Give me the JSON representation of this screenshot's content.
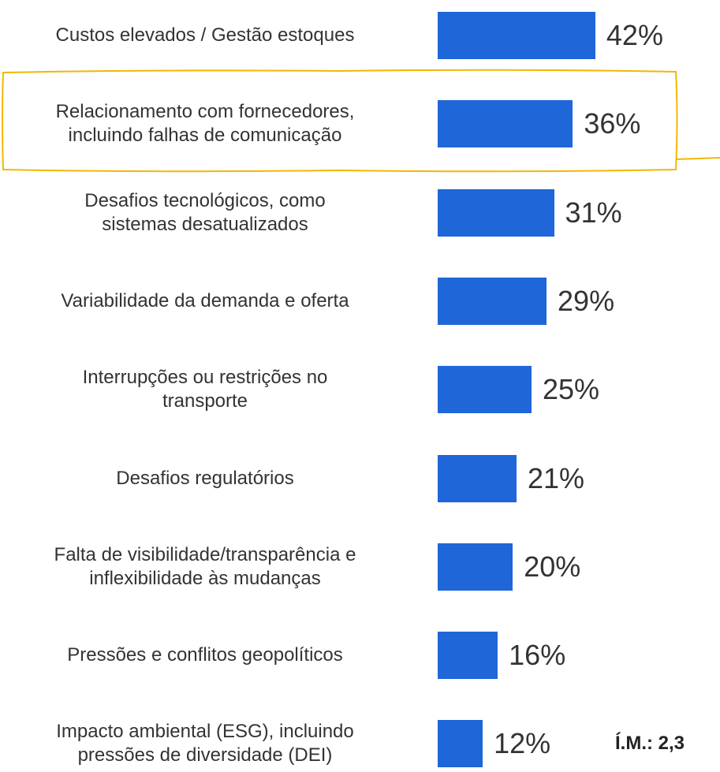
{
  "chart_data": {
    "type": "bar",
    "orientation": "horizontal",
    "color": "#1f66d8",
    "categories": [
      "Custos elevados / Gestão estoques",
      "Relacionamento com fornecedores,\nincluindo falhas de comunicação",
      "Desafios tecnológicos, como\nsistemas desatualizados",
      "Variabilidade da demanda e oferta",
      "Interrupções ou restrições no\ntransporte",
      "Desafios regulatórios",
      "Falta de visibilidade/transparência e\ninflexibilidade às mudanças",
      "Pressões e conflitos geopolíticos",
      "Impacto ambiental (ESG), incluindo\npressões de diversidade (DEI)"
    ],
    "values": [
      42,
      36,
      31,
      29,
      25,
      21,
      20,
      16,
      12
    ],
    "value_labels": [
      "42%",
      "36%",
      "31%",
      "29%",
      "25%",
      "21%",
      "20%",
      "16%",
      "12%"
    ],
    "annotation": "Í.M.: 2,3"
  }
}
